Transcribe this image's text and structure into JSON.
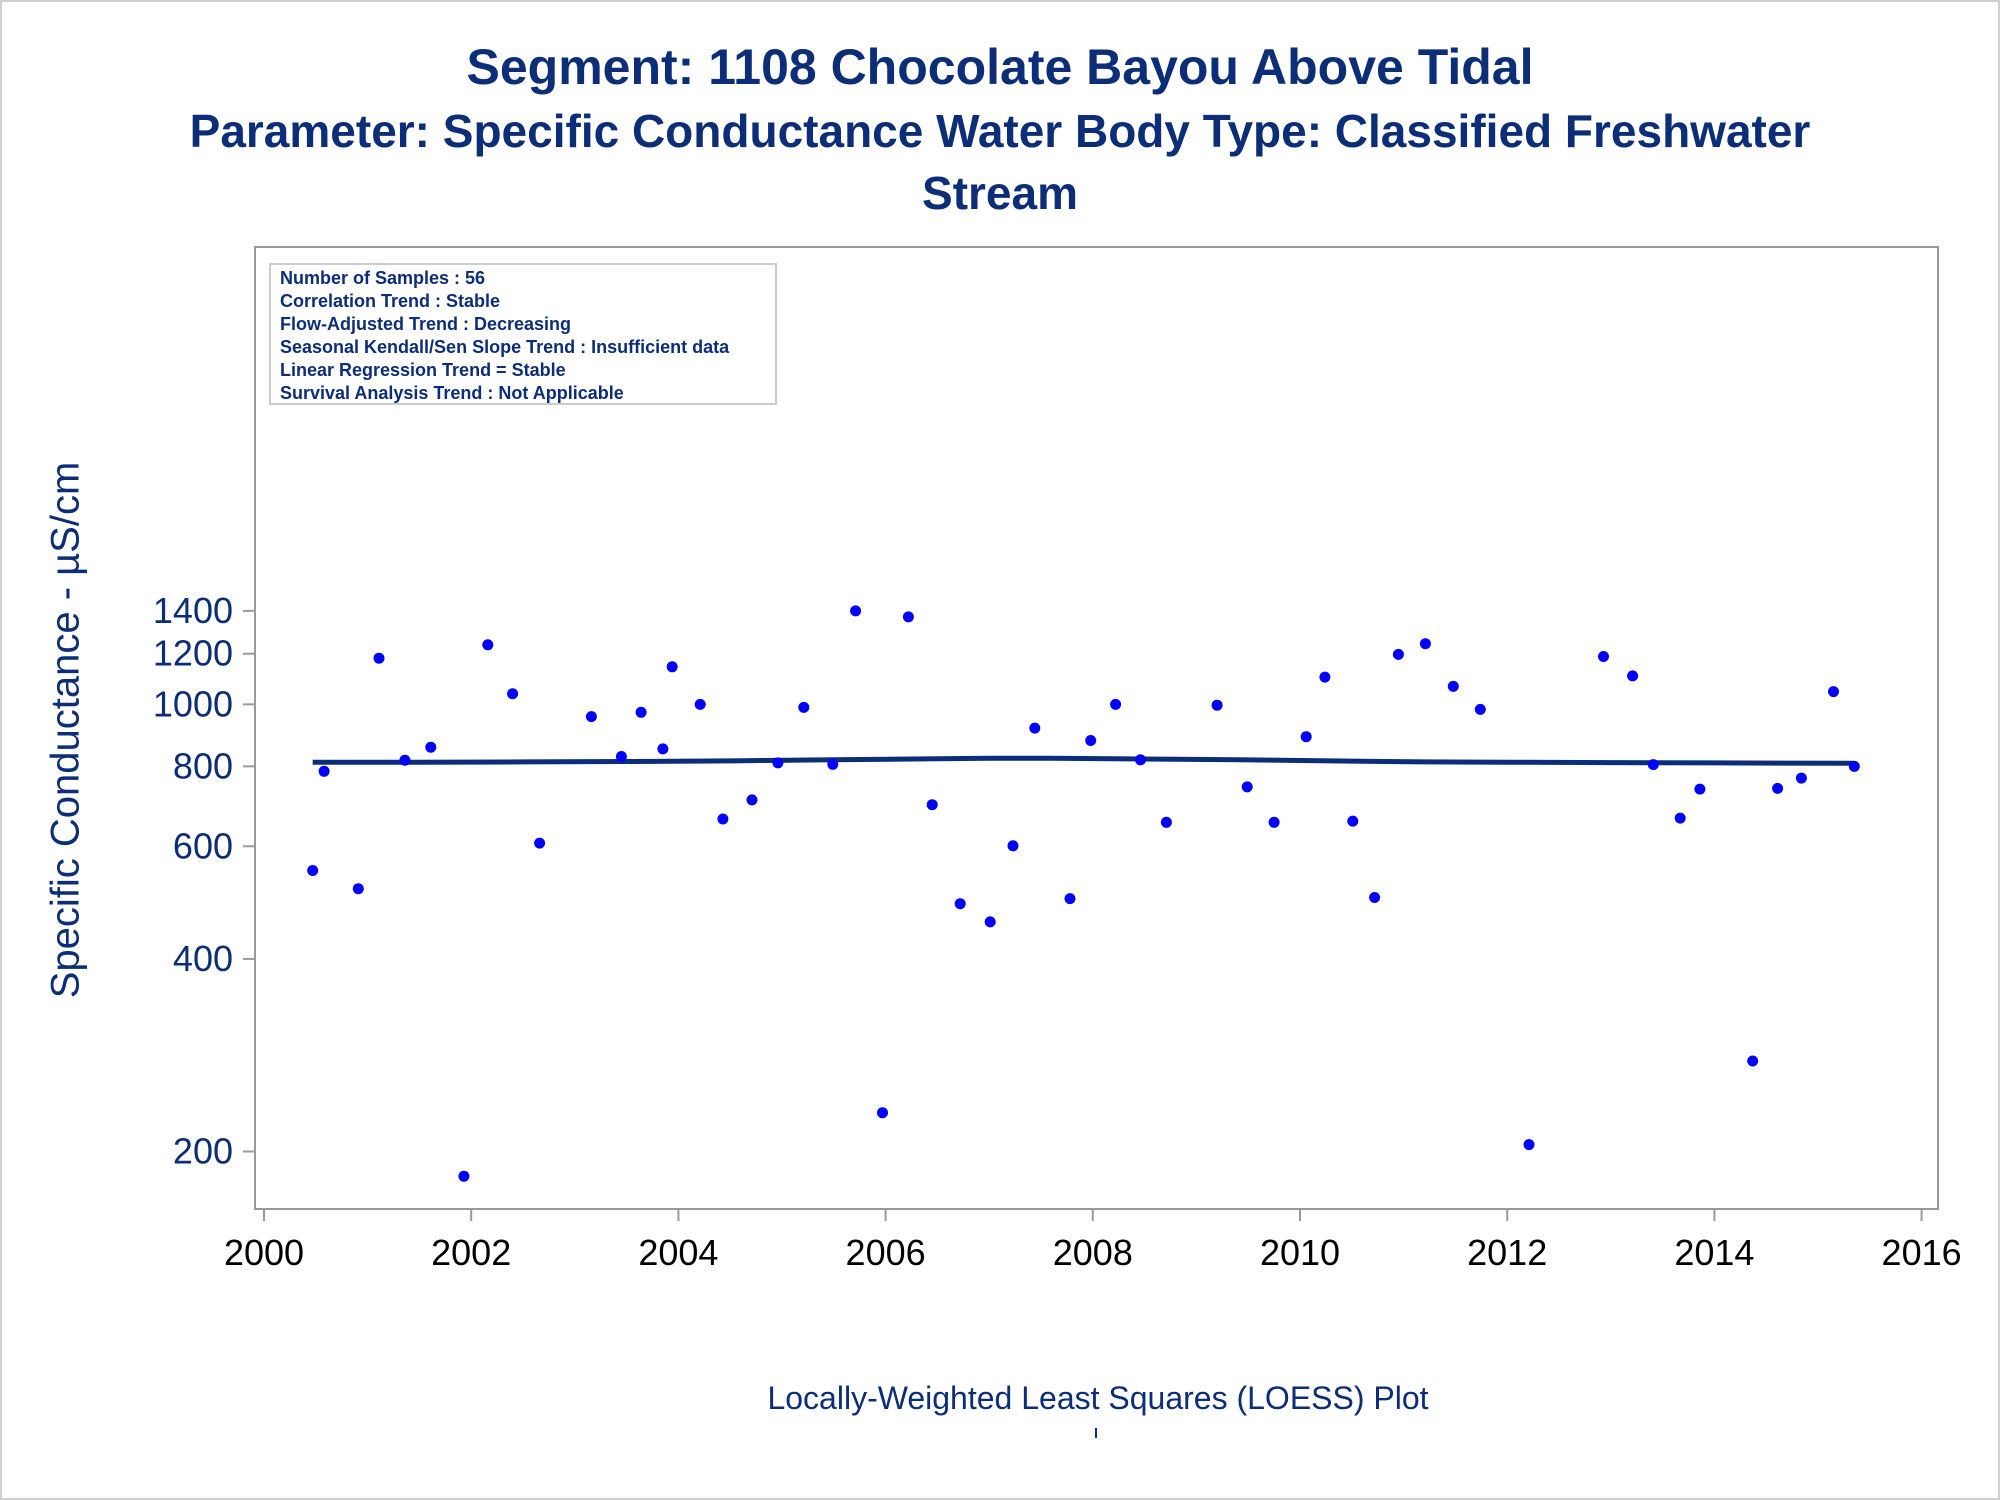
{
  "titles": {
    "line1": "Segment: 1108  Chocolate Bayou Above Tidal",
    "line2": "Parameter: Specific Conductance   Water Body Type: Classified Freshwater",
    "line3": "Stream"
  },
  "colors": {
    "title": "#0c2d77",
    "points": "#0000ff",
    "loess": "#0c2d77",
    "axis": "#999999"
  },
  "stats_box": [
    "Number of Samples : 56",
    "Correlation Trend : Stable",
    "Flow-Adjusted Trend : Decreasing",
    "Seasonal Kendall/Sen Slope Trend : Insufficient data",
    "Linear Regression Trend = Stable",
    "Survival Analysis Trend : Not Applicable"
  ],
  "footnote": "Locally-Weighted Least Squares (LOESS) Plot",
  "chart_data": {
    "type": "scatter",
    "title": "Segment: 1108  Chocolate Bayou Above Tidal",
    "xlabel": "",
    "ylabel": "Specific Conductance -  µS/cm",
    "y_scale": "log",
    "xlim": [
      2000,
      2016
    ],
    "ylim": [
      185,
      1400
    ],
    "x_ticks": [
      "2000",
      "2002",
      "2004",
      "2006",
      "2008",
      "2010",
      "2012",
      "2014",
      "2016"
    ],
    "y_ticks": [
      "200",
      "400",
      "600",
      "800",
      "1000",
      "1200",
      "1400"
    ],
    "grid": false,
    "series": [
      {
        "type": "scatter",
        "points": [
          [
            2000.47,
            550
          ],
          [
            2000.58,
            786
          ],
          [
            2000.91,
            515
          ],
          [
            2001.11,
            1181
          ],
          [
            2001.36,
            818
          ],
          [
            2001.61,
            857
          ],
          [
            2001.93,
            183
          ],
          [
            2002.16,
            1239
          ],
          [
            2002.4,
            1039
          ],
          [
            2002.66,
            607
          ],
          [
            2003.16,
            957
          ],
          [
            2003.45,
            829
          ],
          [
            2003.64,
            972
          ],
          [
            2003.85,
            852
          ],
          [
            2003.94,
            1145
          ],
          [
            2004.21,
            1000
          ],
          [
            2004.43,
            662
          ],
          [
            2004.71,
            709
          ],
          [
            2004.96,
            810
          ],
          [
            2005.21,
            989
          ],
          [
            2005.49,
            806
          ],
          [
            2005.71,
            1400
          ],
          [
            2005.97,
            230
          ],
          [
            2006.22,
            1370
          ],
          [
            2006.45,
            697
          ],
          [
            2006.72,
            488
          ],
          [
            2007.01,
            457
          ],
          [
            2007.23,
            601
          ],
          [
            2007.44,
            918
          ],
          [
            2007.78,
            497
          ],
          [
            2007.98,
            878
          ],
          [
            2008.22,
            1000
          ],
          [
            2008.46,
            819
          ],
          [
            2008.71,
            654
          ],
          [
            2009.2,
            997
          ],
          [
            2009.49,
            743
          ],
          [
            2009.75,
            654
          ],
          [
            2010.06,
            890
          ],
          [
            2010.24,
            1103
          ],
          [
            2010.51,
            657
          ],
          [
            2010.72,
            499
          ],
          [
            2010.95,
            1197
          ],
          [
            2011.21,
            1244
          ],
          [
            2011.48,
            1067
          ],
          [
            2011.74,
            982
          ],
          [
            2012.21,
            205
          ],
          [
            2012.93,
            1188
          ],
          [
            2013.21,
            1108
          ],
          [
            2013.41,
            805
          ],
          [
            2013.67,
            664
          ],
          [
            2013.86,
            737
          ],
          [
            2014.37,
            277
          ],
          [
            2014.61,
            739
          ],
          [
            2014.84,
            767
          ],
          [
            2015.15,
            1047
          ],
          [
            2015.35,
            800
          ]
        ]
      },
      {
        "type": "line",
        "points": [
          [
            2000.47,
            812
          ],
          [
            2001.5,
            812
          ],
          [
            2002.5,
            813
          ],
          [
            2003.5,
            814
          ],
          [
            2004.5,
            816
          ],
          [
            2005.5,
            819
          ],
          [
            2006.5,
            822
          ],
          [
            2007.0,
            824
          ],
          [
            2007.6,
            824
          ],
          [
            2008.2,
            822
          ],
          [
            2008.8,
            821
          ],
          [
            2009.4,
            819
          ],
          [
            2010.0,
            817
          ],
          [
            2010.6,
            815
          ],
          [
            2011.2,
            813
          ],
          [
            2012.0,
            812
          ],
          [
            2013.0,
            811
          ],
          [
            2014.0,
            810
          ],
          [
            2015.35,
            809
          ]
        ]
      }
    ]
  }
}
